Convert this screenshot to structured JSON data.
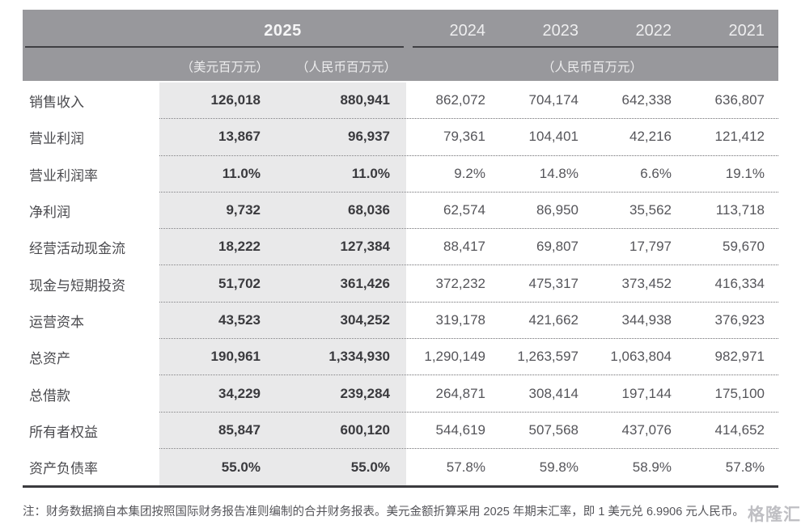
{
  "header": {
    "year_2025": "2025",
    "sub_usd": "（美元百万元）",
    "sub_rmb": "（人民币百万元）",
    "years": [
      "2024",
      "2023",
      "2022",
      "2021"
    ],
    "sub_rmb_group": "（人民币百万元）"
  },
  "rows": [
    {
      "label": "销售收入",
      "usd": "126,018",
      "rmb": "880,941",
      "values": [
        "862,072",
        "704,174",
        "642,338",
        "636,807"
      ]
    },
    {
      "label": "营业利润",
      "usd": "13,867",
      "rmb": "96,937",
      "values": [
        "79,361",
        "104,401",
        "42,216",
        "121,412"
      ]
    },
    {
      "label": "营业利润率",
      "usd": "11.0%",
      "rmb": "11.0%",
      "values": [
        "9.2%",
        "14.8%",
        "6.6%",
        "19.1%"
      ]
    },
    {
      "label": "净利润",
      "usd": "9,732",
      "rmb": "68,036",
      "values": [
        "62,574",
        "86,950",
        "35,562",
        "113,718"
      ]
    },
    {
      "label": "经营活动现金流",
      "usd": "18,222",
      "rmb": "127,384",
      "values": [
        "88,417",
        "69,807",
        "17,797",
        "59,670"
      ]
    },
    {
      "label": "现金与短期投资",
      "usd": "51,702",
      "rmb": "361,426",
      "values": [
        "372,232",
        "475,317",
        "373,452",
        "416,334"
      ]
    },
    {
      "label": "运营资本",
      "usd": "43,523",
      "rmb": "304,252",
      "values": [
        "319,178",
        "421,662",
        "344,938",
        "376,923"
      ]
    },
    {
      "label": "总资产",
      "usd": "190,961",
      "rmb": "1,334,930",
      "values": [
        "1,290,149",
        "1,263,597",
        "1,063,804",
        "982,971"
      ]
    },
    {
      "label": "总借款",
      "usd": "34,229",
      "rmb": "239,284",
      "values": [
        "264,871",
        "308,414",
        "197,144",
        "175,100"
      ]
    },
    {
      "label": "所有者权益",
      "usd": "85,847",
      "rmb": "600,120",
      "values": [
        "544,619",
        "507,568",
        "437,076",
        "414,652"
      ]
    },
    {
      "label": "资产负债率",
      "usd": "55.0%",
      "rmb": "55.0%",
      "values": [
        "57.8%",
        "59.8%",
        "58.9%",
        "57.8%"
      ]
    }
  ],
  "note": "注：财务数据摘自本集团按照国际财务报告准则编制的合并财务报表。美元金额折算采用 2025 年期末汇率，即 1 美元兑 6.9906 元人民币。",
  "watermark": "格隆汇",
  "colors": {
    "header_bg": "#98989c",
    "header_text": "#f6f6f7",
    "shaded_column_bg": "#e9e9ea",
    "bold_value_text": "#3a3a3e",
    "value_text": "#55555a",
    "label_text": "#4a4a4e",
    "bottom_border": "#3a3a3e"
  }
}
